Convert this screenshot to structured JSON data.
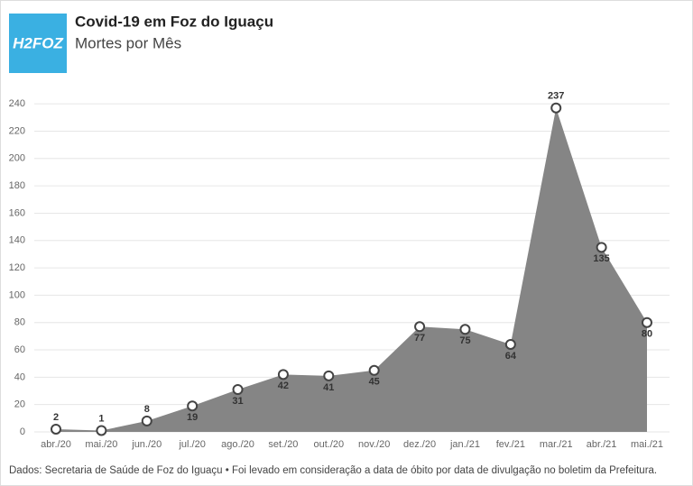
{
  "logo": "H2FOZ",
  "chart_data": {
    "type": "area",
    "title": "Covid-19 em Foz do Iguaçu",
    "subtitle": "Mortes por Mês",
    "categories": [
      "abr./20",
      "mai./20",
      "jun./20",
      "jul./20",
      "ago./20",
      "set./20",
      "out./20",
      "nov./20",
      "dez./20",
      "jan./21",
      "fev./21",
      "mar./21",
      "abr./21",
      "mai./21"
    ],
    "values": [
      2,
      1,
      8,
      19,
      31,
      42,
      41,
      45,
      77,
      75,
      64,
      237,
      135,
      80
    ],
    "color": "#858585",
    "ylim": [
      0,
      250
    ],
    "yticks": [
      0,
      20,
      40,
      60,
      80,
      100,
      120,
      140,
      160,
      180,
      200,
      220,
      240
    ],
    "grid": true,
    "source": "Dados: Secretaria de Saúde de Foz do Iguaçu • Foi levado em consideração a data de óbito por data de divulgação no boletim da Prefeitura."
  }
}
